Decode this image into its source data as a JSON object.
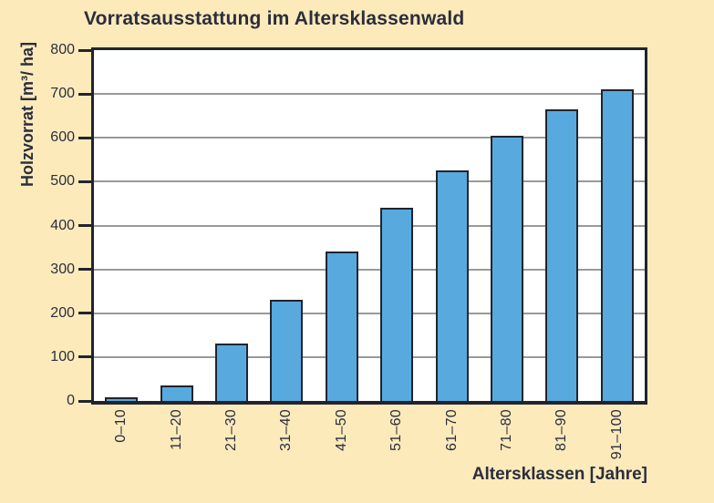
{
  "chart_data": {
    "type": "bar",
    "title": "Vorratsausstattung im Altersklassenwald",
    "xlabel": "Altersklassen [Jahre]",
    "ylabel": "Holzvorrat [m³/ ha]",
    "categories": [
      "0–10",
      "11–20",
      "21–30",
      "31–40",
      "41–50",
      "51–60",
      "61–70",
      "71–80",
      "81–90",
      "91–100"
    ],
    "values": [
      5,
      35,
      130,
      230,
      340,
      440,
      525,
      605,
      665,
      710
    ],
    "ylim": [
      0,
      800
    ],
    "yticks": [
      0,
      100,
      200,
      300,
      400,
      500,
      600,
      700,
      800
    ],
    "grid": true,
    "legend": "none",
    "colors": {
      "background": "#fdeabb",
      "plot_background": "#ffffff",
      "axis": "#20242e",
      "text": "#2a2e3c",
      "gridline": "#999999",
      "bar_fill": "#58a9de",
      "bar_border": "#20242e"
    }
  }
}
